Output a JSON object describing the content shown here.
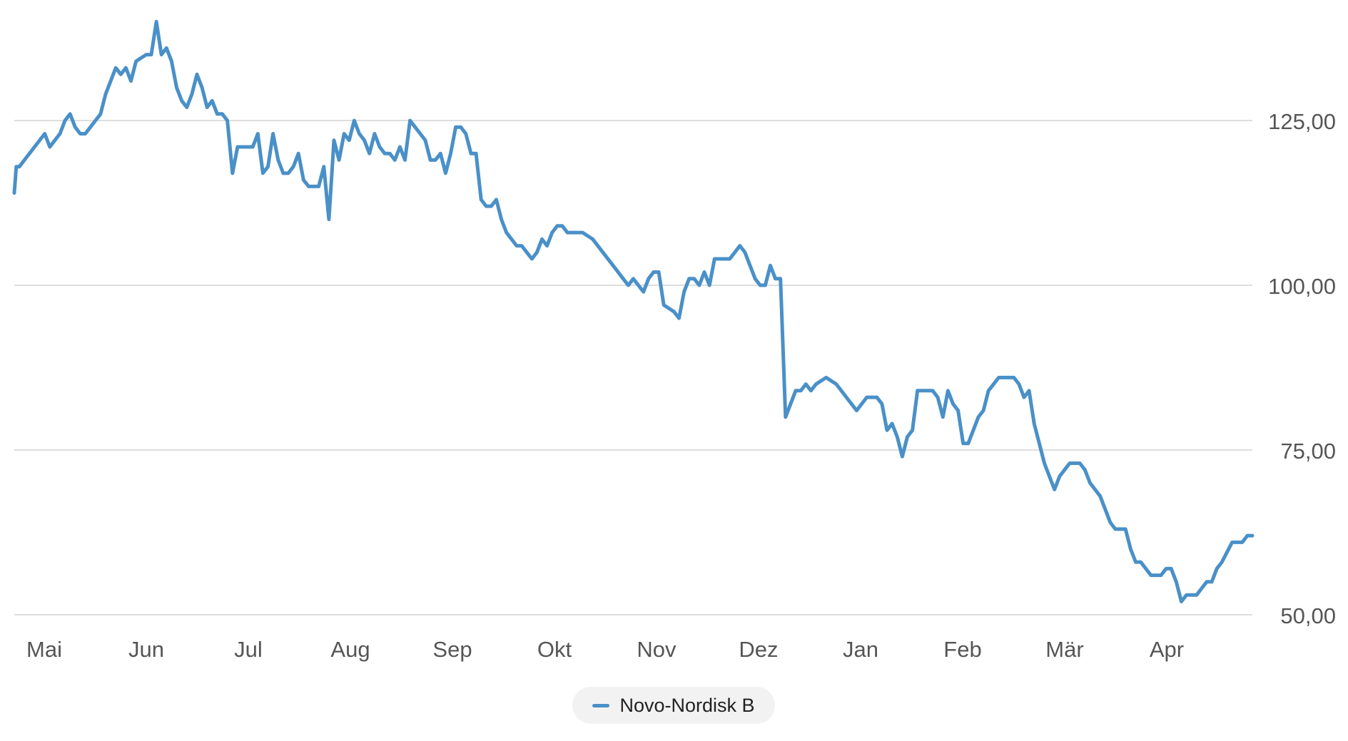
{
  "chart_data": {
    "type": "line",
    "title": "",
    "xlabel": "",
    "ylabel": "",
    "months": [
      "Mai",
      "Jun",
      "Jul",
      "Aug",
      "Sep",
      "Okt",
      "Nov",
      "Dez",
      "Jan",
      "Feb",
      "Mär",
      "Apr"
    ],
    "y_ticks": [
      {
        "value": 125,
        "label": "125,00"
      },
      {
        "value": 100,
        "label": "100,00"
      },
      {
        "value": 75,
        "label": "75,00"
      },
      {
        "value": 50,
        "label": "50,00"
      }
    ],
    "ylim": [
      50,
      139
    ],
    "xlim": [
      0,
      12.2
    ],
    "grid": "horizontal",
    "legend": "bottom-center",
    "line_color": "#4a90c8",
    "series": [
      {
        "name": "Novo-Nordisk B",
        "x": [
          0.0,
          0.02,
          0.05,
          0.1,
          0.2,
          0.3,
          0.35,
          0.4,
          0.45,
          0.5,
          0.55,
          0.6,
          0.65,
          0.7,
          0.75,
          0.8,
          0.85,
          0.9,
          0.95,
          1.0,
          1.05,
          1.1,
          1.15,
          1.2,
          1.3,
          1.35,
          1.4,
          1.45,
          1.5,
          1.55,
          1.6,
          1.65,
          1.7,
          1.75,
          1.8,
          1.85,
          1.9,
          1.95,
          2.0,
          2.05,
          2.1,
          2.15,
          2.2,
          2.25,
          2.3,
          2.35,
          2.4,
          2.45,
          2.5,
          2.55,
          2.6,
          2.65,
          2.7,
          2.75,
          2.8,
          2.85,
          2.9,
          3.0,
          3.05,
          3.1,
          3.15,
          3.2,
          3.25,
          3.3,
          3.35,
          3.4,
          3.45,
          3.5,
          3.55,
          3.6,
          3.65,
          3.7,
          3.75,
          3.8,
          3.85,
          3.9,
          3.95,
          4.0,
          4.05,
          4.1,
          4.15,
          4.2,
          4.25,
          4.3,
          4.35,
          4.4,
          4.45,
          4.5,
          4.55,
          4.6,
          4.65,
          4.7,
          4.75,
          4.8,
          4.85,
          4.9,
          4.95,
          5.0,
          5.05,
          5.1,
          5.15,
          5.2,
          5.25,
          5.3,
          5.35,
          5.4,
          5.45,
          5.5,
          5.6,
          5.7,
          5.8,
          5.9,
          5.95,
          6.0,
          6.05,
          6.1,
          6.15,
          6.2,
          6.25,
          6.3,
          6.35,
          6.4,
          6.5,
          6.55,
          6.6,
          6.65,
          6.7,
          6.75,
          6.8,
          6.85,
          6.9,
          6.95,
          7.0,
          7.05,
          7.1,
          7.15,
          7.2,
          7.25,
          7.3,
          7.35,
          7.4,
          7.45,
          7.5,
          7.55,
          7.6,
          7.65,
          7.7,
          7.75,
          7.8,
          7.85,
          7.9,
          8.0,
          8.1,
          8.2,
          8.3,
          8.4,
          8.5,
          8.55,
          8.6,
          8.65,
          8.7,
          8.75,
          8.8,
          8.85,
          8.9,
          8.95,
          9.0,
          9.05,
          9.1,
          9.15,
          9.2,
          9.25,
          9.3,
          9.35,
          9.4,
          9.45,
          9.5,
          9.55,
          9.6,
          9.65,
          9.7,
          9.75,
          9.8,
          9.85,
          9.9,
          9.95,
          10.0,
          10.05,
          10.1,
          10.15,
          10.2,
          10.25,
          10.3,
          10.35,
          10.4,
          10.45,
          10.5,
          10.55,
          10.6,
          10.65,
          10.7,
          10.75,
          10.8,
          10.85,
          10.9,
          10.95,
          11.0,
          11.05,
          11.1,
          11.15,
          11.2,
          11.25,
          11.3,
          11.35,
          11.4,
          11.45,
          11.5,
          11.55,
          11.6,
          11.65,
          11.7,
          11.75,
          11.8,
          11.85,
          11.9,
          12.0,
          12.05,
          12.1,
          12.15,
          12.2
        ],
        "values": [
          114,
          118,
          118,
          119,
          121,
          123,
          121,
          122,
          123,
          125,
          126,
          124,
          123,
          123,
          124,
          125,
          126,
          129,
          131,
          133,
          132,
          133,
          131,
          134,
          135,
          135,
          140,
          135,
          136,
          134,
          130,
          128,
          127,
          129,
          132,
          130,
          127,
          128,
          126,
          126,
          125,
          117,
          121,
          121,
          121,
          121,
          123,
          117,
          118,
          123,
          119,
          117,
          117,
          118,
          120,
          116,
          115,
          115,
          118,
          110,
          122,
          119,
          123,
          122,
          125,
          123,
          122,
          120,
          123,
          121,
          120,
          120,
          119,
          121,
          119,
          125,
          124,
          123,
          122,
          119,
          119,
          120,
          117,
          120,
          124,
          124,
          123,
          120,
          120,
          113,
          112,
          112,
          113,
          110,
          108,
          107,
          106,
          106,
          105,
          104,
          105,
          107,
          106,
          108,
          109,
          109,
          108,
          108,
          108,
          107,
          105,
          103,
          102,
          101,
          100,
          101,
          100,
          99,
          101,
          102,
          102,
          97,
          96,
          95,
          99,
          101,
          101,
          100,
          102,
          100,
          104,
          104,
          104,
          104,
          105,
          106,
          105,
          103,
          101,
          100,
          100,
          103,
          101,
          101,
          80,
          82,
          84,
          84,
          85,
          84,
          85,
          86,
          85,
          83,
          81,
          83,
          83,
          82,
          78,
          79,
          77,
          74,
          77,
          78,
          84,
          84,
          84,
          84,
          83,
          80,
          84,
          82,
          81,
          76,
          76,
          78,
          80,
          81,
          84,
          85,
          86,
          86,
          86,
          86,
          85,
          83,
          84,
          79,
          76,
          73,
          71,
          69,
          71,
          72,
          73,
          73,
          73,
          72,
          70,
          69,
          68,
          66,
          64,
          63,
          63,
          63,
          60,
          58,
          58,
          57,
          56,
          56,
          56,
          57,
          57,
          55,
          52,
          53,
          53,
          53,
          54,
          55,
          55,
          57,
          58,
          61,
          61,
          61,
          62,
          62
        ]
      }
    ]
  }
}
